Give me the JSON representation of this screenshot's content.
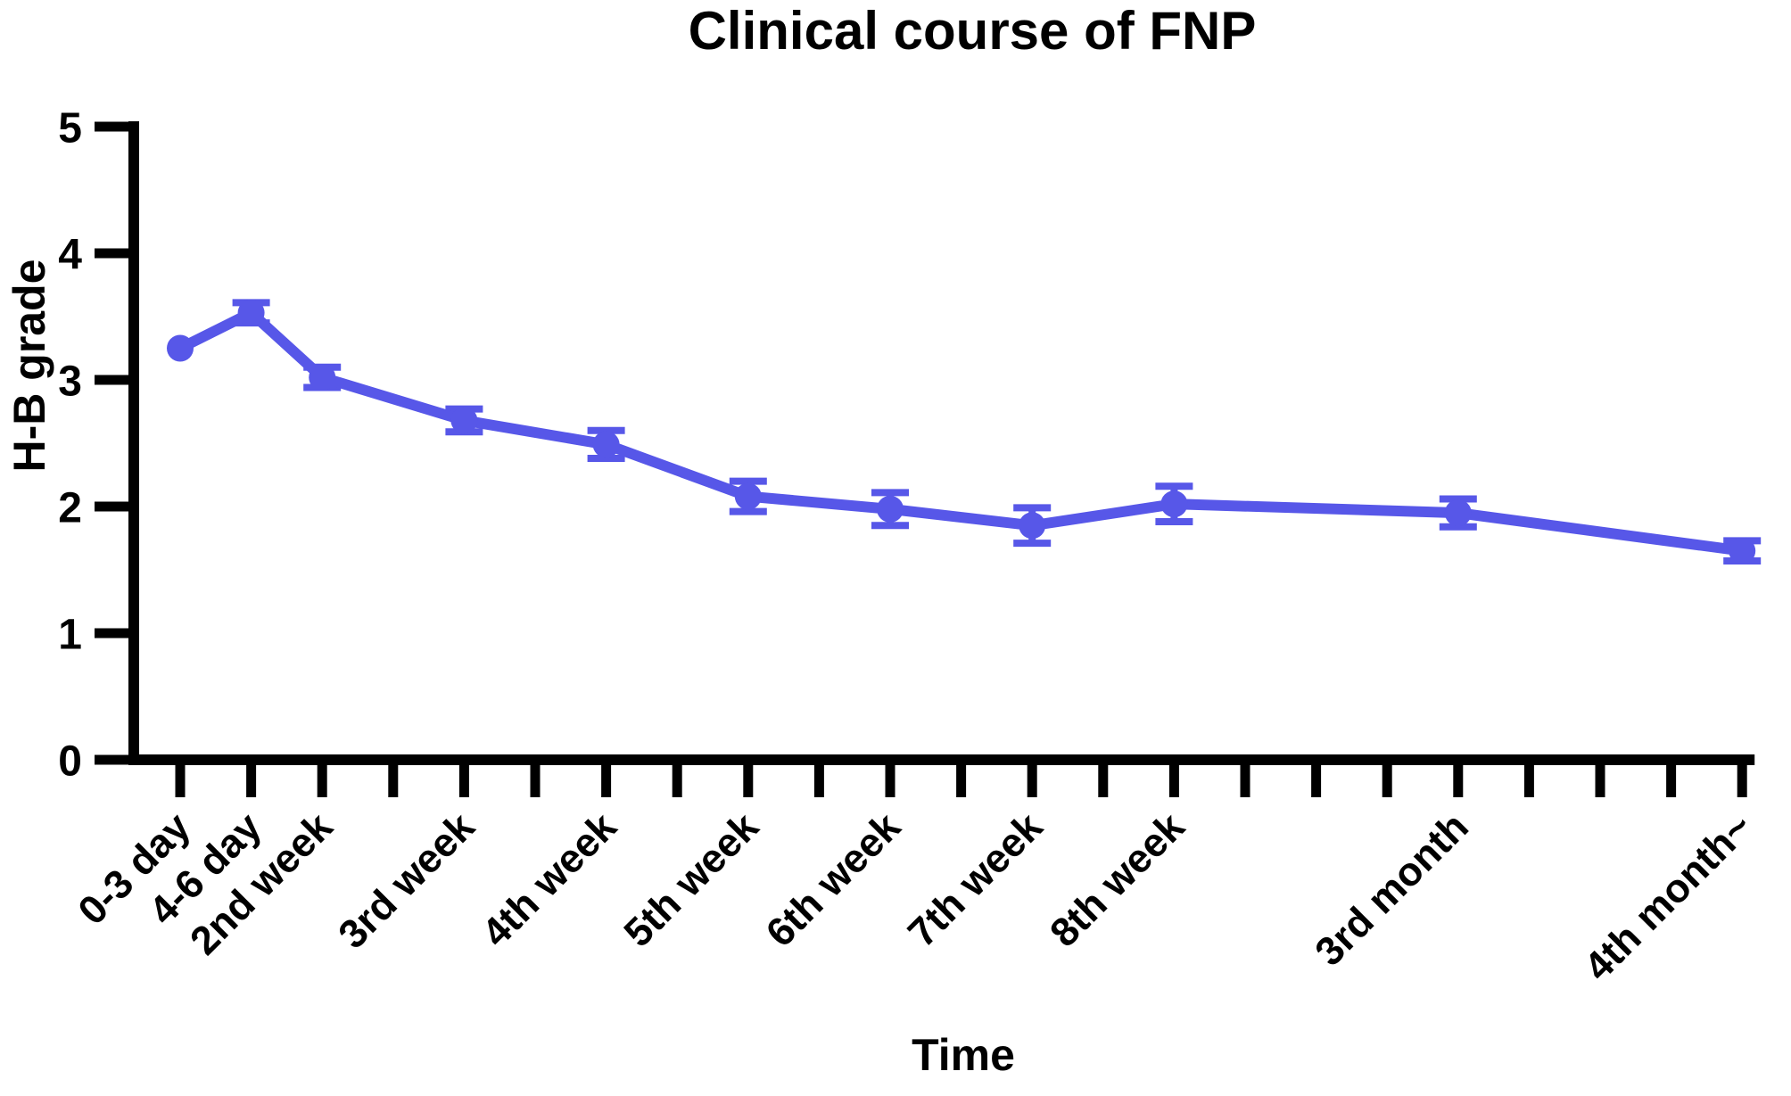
{
  "chart_data": {
    "type": "line",
    "title": "Clinical course of FNP",
    "xlabel": "Time",
    "ylabel": "H-B grade",
    "ylim": [
      0,
      5
    ],
    "yticks": [
      0,
      1,
      2,
      3,
      4,
      5
    ],
    "categories": [
      "0-3 day",
      "4-6 day",
      "2nd week",
      "3rd week",
      "4th week",
      "5th week",
      "6th week",
      "7th week",
      "8th week",
      "3rd month",
      "4th month~"
    ],
    "series": [
      {
        "name": "H-B grade",
        "values": [
          3.25,
          3.53,
          3.02,
          2.68,
          2.49,
          2.08,
          1.98,
          1.85,
          2.02,
          1.95,
          1.65
        ],
        "errors": [
          0.03,
          0.08,
          0.08,
          0.09,
          0.11,
          0.12,
          0.13,
          0.14,
          0.14,
          0.11,
          0.08
        ]
      }
    ],
    "tick_positions": [
      0,
      1,
      2,
      4,
      6,
      8,
      10,
      12,
      14,
      18,
      22
    ],
    "total_x_ticks": 23,
    "grid": false,
    "legend": "none",
    "line_color": "#5757e8",
    "axis_color": "#000000",
    "error_bars": "vertical with caps",
    "marker": "filled circle"
  }
}
